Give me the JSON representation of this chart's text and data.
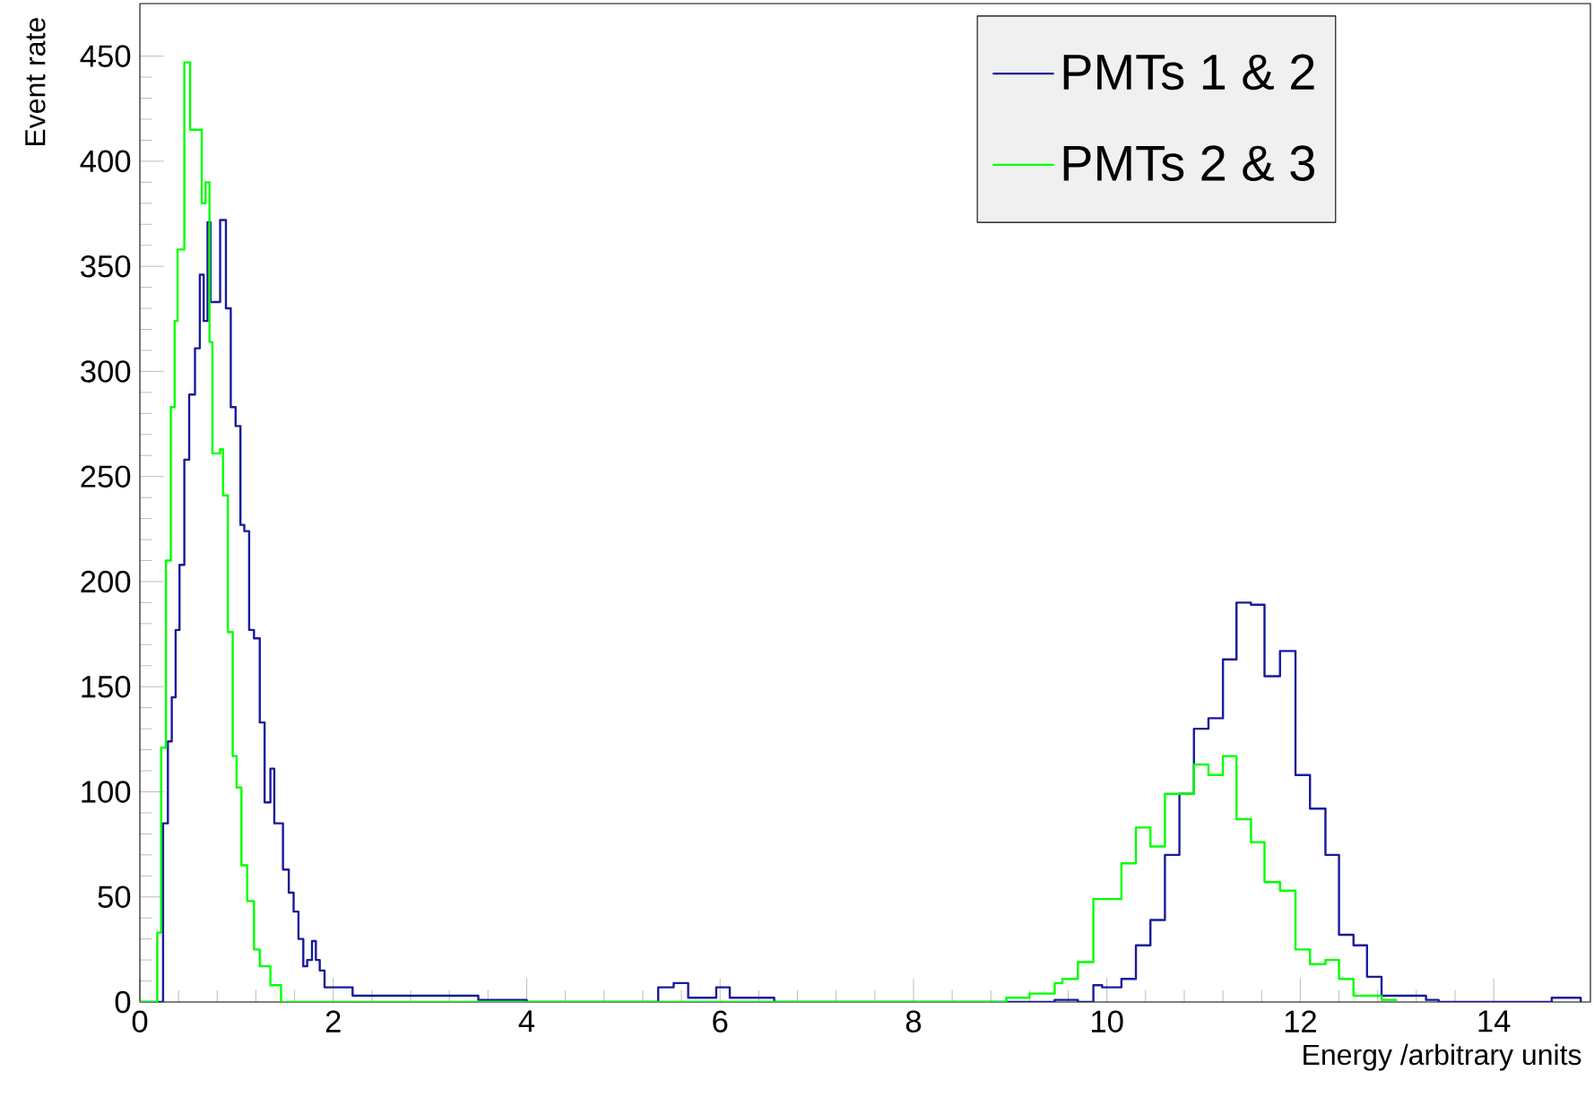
{
  "chart_data": {
    "type": "step",
    "xlabel": "Energy /arbitrary units",
    "ylabel": "Event rate",
    "xlim": [
      0,
      15
    ],
    "ylim": [
      0,
      475
    ],
    "xticks": [
      0,
      2,
      4,
      6,
      8,
      10,
      12,
      14
    ],
    "yticks": [
      0,
      50,
      100,
      150,
      200,
      250,
      300,
      350,
      400,
      450
    ],
    "legend": "top right",
    "grid": false,
    "series": [
      {
        "name": "PMTs 1 & 2",
        "color": "#1a1a9a",
        "x": [
          0,
          0.24,
          0.29,
          0.33,
          0.37,
          0.41,
          0.46,
          0.51,
          0.57,
          0.62,
          0.66,
          0.7,
          0.73,
          0.83,
          0.89,
          0.94,
          0.99,
          1.04,
          1.08,
          1.13,
          1.18,
          1.24,
          1.29,
          1.35,
          1.39,
          1.48,
          1.54,
          1.59,
          1.64,
          1.69,
          1.73,
          1.78,
          1.82,
          1.86,
          1.91,
          2.2,
          3.5,
          4.0,
          5.36,
          5.52,
          5.67,
          5.96,
          6.1,
          6.56,
          9.46,
          9.7,
          9.86,
          9.95,
          10.15,
          10.3,
          10.45,
          10.6,
          10.75,
          10.9,
          11.05,
          11.2,
          11.34,
          11.49,
          11.63,
          11.79,
          11.95,
          12.1,
          12.26,
          12.4,
          12.55,
          12.69,
          12.84,
          12.99,
          13.3,
          13.43,
          14.6,
          14.9
        ],
        "values": [
          0,
          85,
          124,
          145,
          177,
          208,
          258,
          289,
          311,
          346,
          324,
          371,
          333,
          372,
          330,
          283,
          274,
          227,
          224,
          177,
          173,
          133,
          95,
          111,
          85,
          63,
          52,
          43,
          30,
          17,
          20,
          29,
          20,
          15,
          7,
          3,
          1,
          0,
          7,
          9,
          2,
          7,
          2,
          0,
          1,
          0,
          8,
          7,
          11,
          27,
          39,
          70,
          99,
          130,
          135,
          163,
          190,
          189,
          155,
          167,
          108,
          92,
          70,
          32,
          27,
          12,
          3,
          3,
          1,
          0,
          2,
          0
        ]
      },
      {
        "name": "PMTs 2 & 3",
        "color": "#00ff00",
        "x": [
          0,
          0.18,
          0.22,
          0.27,
          0.32,
          0.36,
          0.39,
          0.46,
          0.52,
          0.64,
          0.68,
          0.72,
          0.75,
          0.83,
          0.86,
          0.91,
          0.96,
          1.0,
          1.05,
          1.11,
          1.18,
          1.24,
          1.35,
          1.46,
          8.96,
          9.2,
          9.46,
          9.54,
          9.7,
          9.86,
          10.15,
          10.3,
          10.45,
          10.6,
          10.9,
          11.05,
          11.2,
          11.34,
          11.49,
          11.63,
          11.79,
          11.95,
          12.1,
          12.26,
          12.4,
          12.55,
          12.84,
          12.99
        ],
        "values": [
          0,
          33,
          121,
          210,
          283,
          324,
          358,
          447,
          415,
          380,
          390,
          314,
          261,
          263,
          241,
          176,
          117,
          102,
          65,
          48,
          25,
          17,
          8,
          0,
          2,
          4,
          9,
          11,
          19,
          49,
          66,
          83,
          74,
          99,
          113,
          108,
          117,
          87,
          76,
          57,
          53,
          25,
          18,
          20,
          11,
          3,
          1,
          0
        ]
      }
    ]
  }
}
